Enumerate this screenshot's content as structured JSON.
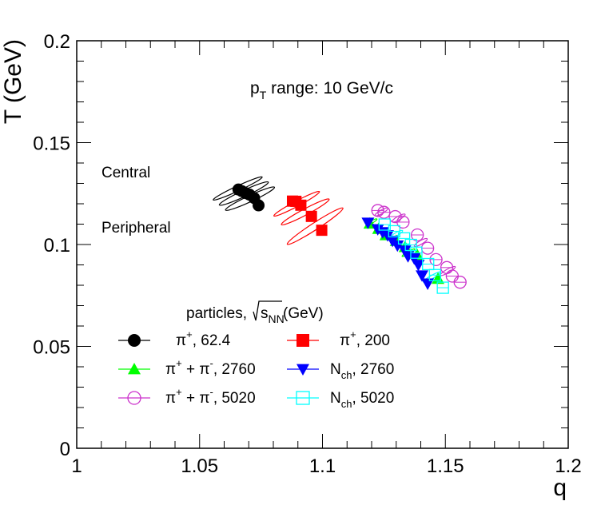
{
  "chart_data": {
    "type": "scatter",
    "title": "",
    "xlabel": "q",
    "ylabel": "T (GeV)",
    "xlim": [
      1.0,
      1.2
    ],
    "ylim": [
      0.0,
      0.2
    ],
    "x_ticks": [
      "1",
      "1.05",
      "1.1",
      "1.15",
      "1.2"
    ],
    "y_ticks": [
      "0",
      "0.05",
      "0.1",
      "0.15",
      "0.2"
    ],
    "annotations": {
      "pt_range": {
        "p": "p",
        "sub": "T",
        "rest": " range: 10 GeV/c"
      },
      "central": "Central",
      "peripheral": "Peripheral"
    },
    "legend": {
      "header_pre": "particles, ",
      "header_root": "s",
      "header_root_sub": "NN",
      "header_post": " (GeV)"
    },
    "series": [
      {
        "name": "π+, 62.4",
        "label_base": "π",
        "label_sup": "+",
        "label_rest": ", 62.4",
        "color": "#000000",
        "marker": "circle-filled",
        "ellipses": [
          {
            "x": 1.0655,
            "y": 0.1275,
            "a": 0.011,
            "b": 0.0012,
            "angle": -25
          },
          {
            "x": 1.068,
            "y": 0.125,
            "a": 0.011,
            "b": 0.0015,
            "angle": -25
          },
          {
            "x": 1.0705,
            "y": 0.1225,
            "a": 0.011,
            "b": 0.0015,
            "angle": -25
          }
        ],
        "points": [
          {
            "x": 1.0658,
            "y": 0.127
          },
          {
            "x": 1.0672,
            "y": 0.1262
          },
          {
            "x": 1.0688,
            "y": 0.1252
          },
          {
            "x": 1.0703,
            "y": 0.1245
          },
          {
            "x": 1.0722,
            "y": 0.1228
          },
          {
            "x": 1.074,
            "y": 0.1192
          }
        ]
      },
      {
        "name": "π+, 200",
        "label_base": "π",
        "label_sup": "+",
        "label_rest": ", 200",
        "color": "#ff0000",
        "marker": "square-filled",
        "ellipses": [
          {
            "x": 1.0895,
            "y": 0.12,
            "a": 0.0105,
            "b": 0.0013,
            "angle": -28
          },
          {
            "x": 1.093,
            "y": 0.116,
            "a": 0.011,
            "b": 0.0015,
            "angle": -28
          },
          {
            "x": 1.097,
            "y": 0.109,
            "a": 0.0135,
            "b": 0.0017,
            "angle": -33
          }
        ],
        "points": [
          {
            "x": 1.0878,
            "y": 0.1213
          },
          {
            "x": 1.0892,
            "y": 0.1212
          },
          {
            "x": 1.0912,
            "y": 0.1193
          },
          {
            "x": 1.0955,
            "y": 0.1138
          },
          {
            "x": 1.0997,
            "y": 0.107
          }
        ]
      },
      {
        "name": "π+ + π-, 2760",
        "label_base": "π",
        "label_sup": "+",
        "label_mid": " + π",
        "label_sup2": "-",
        "label_rest": ", 2760",
        "color": "#00ff00",
        "marker": "triangle-up-filled",
        "ellipses": [
          {
            "x": 1.12,
            "y": 0.111,
            "a": 0.0025,
            "b": 0.0006,
            "angle": -30
          },
          {
            "x": 1.135,
            "y": 0.096,
            "a": 0.003,
            "b": 0.0006,
            "angle": -30
          }
        ],
        "points": [
          {
            "x": 1.1193,
            "y": 0.1103
          },
          {
            "x": 1.1228,
            "y": 0.1077
          },
          {
            "x": 1.1258,
            "y": 0.1046
          },
          {
            "x": 1.13,
            "y": 0.1018
          },
          {
            "x": 1.1336,
            "y": 0.0988
          },
          {
            "x": 1.1385,
            "y": 0.095
          },
          {
            "x": 1.147,
            "y": 0.0832
          }
        ]
      },
      {
        "name": "Nch, 2760",
        "label_base": "N",
        "label_sub": "ch",
        "label_rest": ", 2760",
        "color": "#0000ff",
        "marker": "triangle-down-filled",
        "ellipses": [],
        "points": [
          {
            "x": 1.1185,
            "y": 0.1107
          },
          {
            "x": 1.1225,
            "y": 0.1075
          },
          {
            "x": 1.1245,
            "y": 0.106
          },
          {
            "x": 1.1265,
            "y": 0.1045
          },
          {
            "x": 1.1285,
            "y": 0.1018
          },
          {
            "x": 1.1305,
            "y": 0.0995
          },
          {
            "x": 1.1335,
            "y": 0.097
          },
          {
            "x": 1.1348,
            "y": 0.0942
          },
          {
            "x": 1.1373,
            "y": 0.0932
          },
          {
            "x": 1.139,
            "y": 0.09
          },
          {
            "x": 1.1405,
            "y": 0.0848
          },
          {
            "x": 1.1428,
            "y": 0.0808
          }
        ]
      },
      {
        "name": "π+ + π-, 5020",
        "label_base": "π",
        "label_sup": "+",
        "label_mid": " + π",
        "label_sup2": "-",
        "label_rest": ", 5020",
        "color": "#cc33cc",
        "marker": "circle-open",
        "ellipses": [
          {
            "x": 1.124,
            "y": 0.116,
            "a": 0.003,
            "b": 0.0009,
            "angle": -30
          },
          {
            "x": 1.131,
            "y": 0.113,
            "a": 0.003,
            "b": 0.0009,
            "angle": -30
          },
          {
            "x": 1.14,
            "y": 0.101,
            "a": 0.003,
            "b": 0.0009,
            "angle": -30
          },
          {
            "x": 1.151,
            "y": 0.087,
            "a": 0.0035,
            "b": 0.0009,
            "angle": -30
          }
        ],
        "points": [
          {
            "x": 1.1225,
            "y": 0.1167
          },
          {
            "x": 1.125,
            "y": 0.1158
          },
          {
            "x": 1.1296,
            "y": 0.1137
          },
          {
            "x": 1.1328,
            "y": 0.111
          },
          {
            "x": 1.1386,
            "y": 0.1047
          },
          {
            "x": 1.1428,
            "y": 0.0982
          },
          {
            "x": 1.1462,
            "y": 0.0926
          },
          {
            "x": 1.1506,
            "y": 0.0887
          },
          {
            "x": 1.1528,
            "y": 0.0845
          },
          {
            "x": 1.156,
            "y": 0.0815
          }
        ]
      },
      {
        "name": "Nch, 5020",
        "label_base": "N",
        "label_sub": "ch",
        "label_rest": ", 5020",
        "color": "#00ffff",
        "marker": "square-open",
        "ellipses": [
          {
            "x": 1.13,
            "y": 0.105,
            "a": 0.003,
            "b": 0.0008,
            "angle": -30
          },
          {
            "x": 1.1445,
            "y": 0.084,
            "a": 0.004,
            "b": 0.0008,
            "angle": -30
          }
        ],
        "points": [
          {
            "x": 1.1253,
            "y": 0.1098
          },
          {
            "x": 1.1292,
            "y": 0.1065
          },
          {
            "x": 1.1332,
            "y": 0.103
          },
          {
            "x": 1.136,
            "y": 0.0998
          },
          {
            "x": 1.1382,
            "y": 0.096
          },
          {
            "x": 1.143,
            "y": 0.0904
          },
          {
            "x": 1.1458,
            "y": 0.085
          },
          {
            "x": 1.149,
            "y": 0.0788
          }
        ]
      }
    ]
  }
}
